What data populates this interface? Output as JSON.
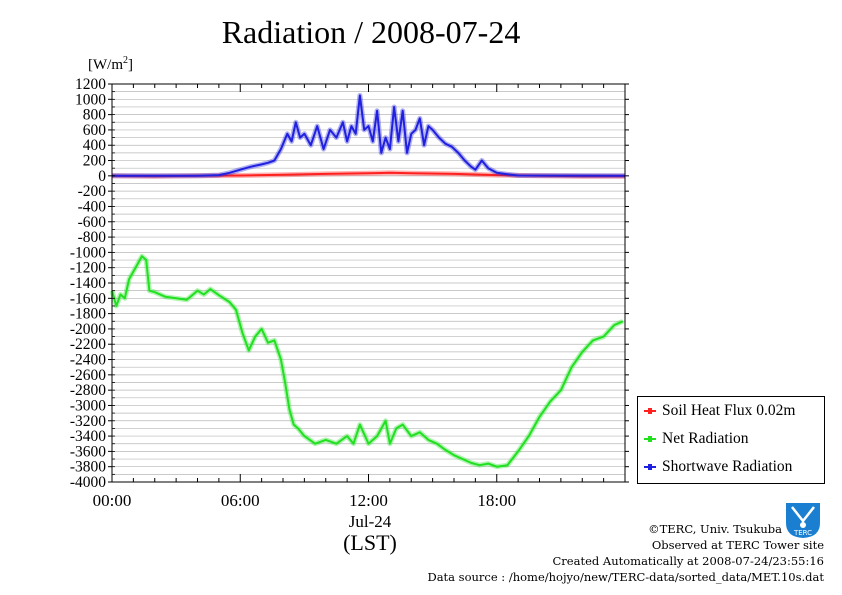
{
  "chart_data": {
    "type": "line",
    "title": "Radiation / 2008-07-24",
    "ylabel_unit": "[W/m",
    "ylabel_sup": "2",
    "ylabel_close": "]",
    "xlabel": "(LST)",
    "date_label": "Jul-24",
    "ylim": [
      -4000,
      1200
    ],
    "yticks": [
      "1200",
      "1000",
      "800",
      "600",
      "400",
      "200",
      "0",
      "-200",
      "-400",
      "-600",
      "-800",
      "-1000",
      "-1200",
      "-1400",
      "-1600",
      "-1800",
      "-2000",
      "-2200",
      "-2400",
      "-2600",
      "-2800",
      "-3000",
      "-3200",
      "-3400",
      "-3600",
      "-3800",
      "-4000"
    ],
    "xlim_hours": [
      0,
      24
    ],
    "xticks": [
      "00:00",
      "06:00",
      "12:00",
      "18:00"
    ],
    "grid": true,
    "legend_position": "lower-right",
    "series": [
      {
        "name": "Soil Heat Flux 0.02m",
        "color": "#ff2020",
        "x": [
          0,
          2,
          4,
          6,
          8,
          10,
          12,
          13,
          14,
          16,
          18,
          20,
          22,
          24
        ],
        "values": [
          0,
          -5,
          0,
          5,
          15,
          25,
          35,
          40,
          35,
          25,
          10,
          0,
          -5,
          -5
        ]
      },
      {
        "name": "Net Radiation",
        "color": "#20e020",
        "x": [
          0,
          0.2,
          0.4,
          0.6,
          0.8,
          1.0,
          1.2,
          1.4,
          1.6,
          1.75,
          2.0,
          2.5,
          3.0,
          3.5,
          4.0,
          4.3,
          4.6,
          5.0,
          5.5,
          5.8,
          6.1,
          6.4,
          6.7,
          7.0,
          7.3,
          7.6,
          7.9,
          8.1,
          8.3,
          8.5,
          8.7,
          9.0,
          9.5,
          10.0,
          10.5,
          11.0,
          11.3,
          11.6,
          12.0,
          12.4,
          12.8,
          13.0,
          13.3,
          13.6,
          14.0,
          14.4,
          14.8,
          15.2,
          15.6,
          16.0,
          16.4,
          16.8,
          17.2,
          17.6,
          18.0,
          18.5,
          19.0,
          19.5,
          20.0,
          20.5,
          21.0,
          21.5,
          22.0,
          22.5,
          23.0,
          23.5,
          23.9
        ],
        "values": [
          -1500,
          -1700,
          -1550,
          -1600,
          -1350,
          -1250,
          -1150,
          -1050,
          -1100,
          -1500,
          -1520,
          -1580,
          -1600,
          -1620,
          -1500,
          -1550,
          -1480,
          -1560,
          -1650,
          -1750,
          -2050,
          -2280,
          -2100,
          -2000,
          -2180,
          -2150,
          -2400,
          -2700,
          -3050,
          -3250,
          -3300,
          -3400,
          -3500,
          -3450,
          -3500,
          -3400,
          -3500,
          -3250,
          -3500,
          -3400,
          -3200,
          -3500,
          -3300,
          -3250,
          -3400,
          -3350,
          -3450,
          -3500,
          -3580,
          -3650,
          -3700,
          -3750,
          -3780,
          -3760,
          -3800,
          -3780,
          -3600,
          -3400,
          -3150,
          -2950,
          -2800,
          -2500,
          -2300,
          -2150,
          -2100,
          -1950,
          -1900
        ]
      },
      {
        "name": "Shortwave Radiation",
        "color": "#2020e0",
        "x": [
          0,
          4,
          5,
          5.5,
          6,
          6.5,
          7,
          7.3,
          7.6,
          7.9,
          8.2,
          8.4,
          8.6,
          8.8,
          9.0,
          9.3,
          9.6,
          9.9,
          10.2,
          10.5,
          10.8,
          11.0,
          11.2,
          11.4,
          11.6,
          11.8,
          12.0,
          12.2,
          12.4,
          12.6,
          12.8,
          13.0,
          13.2,
          13.4,
          13.6,
          13.8,
          14.0,
          14.2,
          14.4,
          14.6,
          14.8,
          15.0,
          15.3,
          15.6,
          15.9,
          16.2,
          16.5,
          16.8,
          17.0,
          17.3,
          17.6,
          18.0,
          18.5,
          19.0,
          24
        ],
        "values": [
          0,
          0,
          10,
          40,
          80,
          120,
          150,
          170,
          200,
          350,
          550,
          450,
          700,
          500,
          550,
          400,
          650,
          350,
          600,
          500,
          700,
          450,
          650,
          550,
          1050,
          600,
          650,
          450,
          850,
          300,
          500,
          350,
          900,
          450,
          850,
          300,
          550,
          600,
          750,
          400,
          650,
          600,
          500,
          420,
          380,
          300,
          200,
          120,
          80,
          200,
          100,
          40,
          20,
          5,
          0
        ]
      }
    ]
  },
  "footer": {
    "copyright": "©TERC, Univ. Tsukuba",
    "observed": "Observed at TERC Tower site",
    "created": "Created Automatically at 2008-07-24/23:55:16",
    "source": "Data source : /home/hojyo/new/TERC-data/sorted_data/MET.10s.dat"
  },
  "logo": {
    "icon": "terc-logo-icon",
    "text": "TERC",
    "color": "#1a7fd0"
  }
}
